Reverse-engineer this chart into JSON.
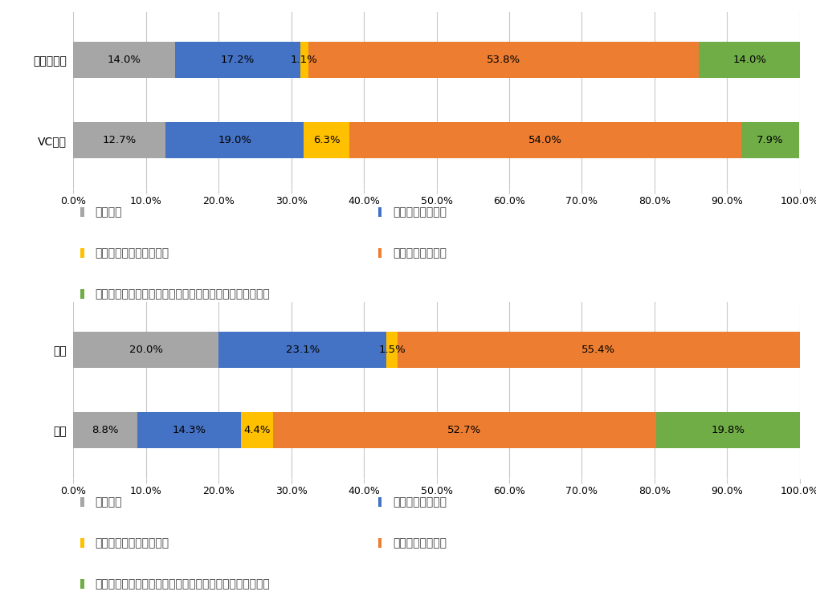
{
  "chart1": {
    "categories": [
      "ナッジ店舗",
      "VC店舗"
    ],
    "series": [
      {
        "label": "思わない",
        "color": "#a6a6a6",
        "values": [
          14.0,
          12.7
        ]
      },
      {
        "label": "いずれ実行したい",
        "color": "#4472c4",
        "values": [
          17.2,
          19.0
        ]
      },
      {
        "label": "半年以内には実行したい",
        "color": "#ffc000",
        "values": [
          1.1,
          6.3
        ]
      },
      {
        "label": "すぐに実行したい",
        "color": "#ed7d31",
        "values": [
          53.8,
          54.0
        ]
      },
      {
        "label": "今回の食事で実行した（意識して野菜メニューを食べた）",
        "color": "#70ad47",
        "values": [
          14.0,
          7.9
        ]
      }
    ]
  },
  "chart2": {
    "categories": [
      "平日",
      "休日"
    ],
    "series": [
      {
        "label": "思わない",
        "color": "#a6a6a6",
        "values": [
          20.0,
          8.8
        ]
      },
      {
        "label": "いずれ実行したい",
        "color": "#4472c4",
        "values": [
          23.1,
          14.3
        ]
      },
      {
        "label": "半年以内には実行したい",
        "color": "#ffc000",
        "values": [
          1.5,
          4.4
        ]
      },
      {
        "label": "すぐに実行したい",
        "color": "#ed7d31",
        "values": [
          55.4,
          52.7
        ]
      },
      {
        "label": "今回の食事で実行した（意識して野菜メニューを食べた）",
        "color": "#70ad47",
        "values": [
          0.0,
          19.8
        ]
      }
    ]
  },
  "legend_items": [
    {
      "label": "思わない",
      "color": "#a6a6a6"
    },
    {
      "label": "いずれ実行したい",
      "color": "#4472c4"
    },
    {
      "label": "半年以内には実行したい",
      "color": "#ffc000"
    },
    {
      "label": "すぐに実行したい",
      "color": "#ed7d31"
    },
    {
      "label": "今回の食事で実行した（意識して野菜メニューを食べた）",
      "color": "#70ad47"
    }
  ],
  "bar_height": 0.45,
  "fontsize": 10,
  "label_fontsize": 9.5,
  "tick_fontsize": 9,
  "ytick_fontsize": 10,
  "background_color": "#ffffff",
  "xlim": [
    0,
    100
  ],
  "xtick_labels": [
    "0.0%",
    "10.0%",
    "20.0%",
    "30.0%",
    "40.0%",
    "50.0%",
    "60.0%",
    "70.0%",
    "80.0%",
    "90.0%",
    "100.0%"
  ],
  "xtick_values": [
    0,
    10,
    20,
    30,
    40,
    50,
    60,
    70,
    80,
    90,
    100
  ]
}
